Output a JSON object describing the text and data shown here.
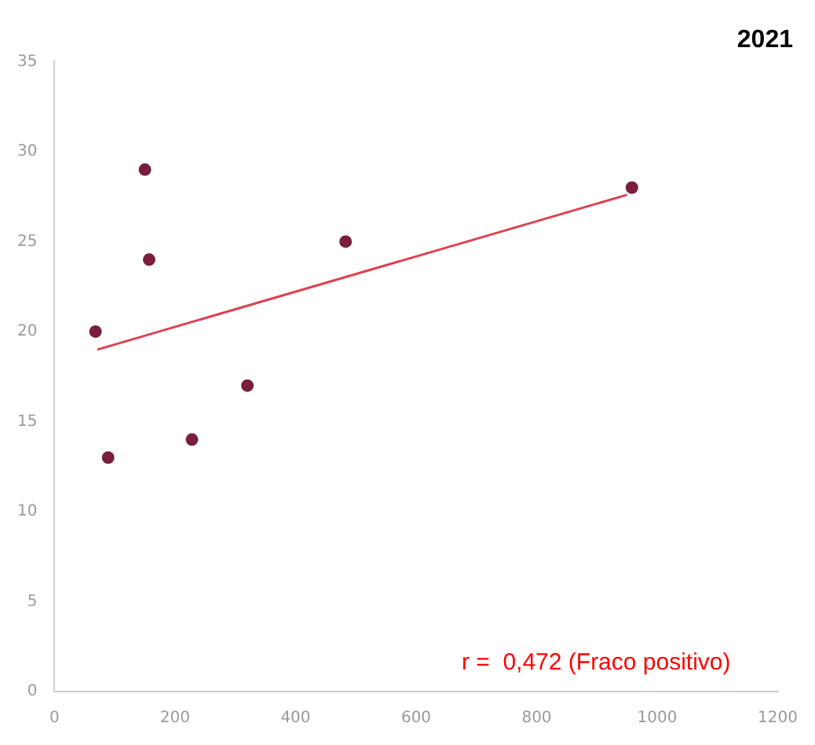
{
  "chart_data": {
    "type": "scatter",
    "title": "2021",
    "annotations": [
      "r =  0,472 (Fraco positivo)"
    ],
    "xlim": [
      0,
      1200
    ],
    "xticks": [
      0,
      200,
      400,
      600,
      800,
      1000,
      1200
    ],
    "ylim": [
      0,
      35
    ],
    "yticks": [
      0,
      5,
      10,
      15,
      20,
      25,
      30,
      35
    ],
    "grid": false,
    "legend": false,
    "marker": "circle",
    "series": [
      {
        "type": "scatter",
        "color": "#7a1e3c",
        "x": [
          68,
          89,
          150,
          157,
          228,
          320,
          483,
          958
        ],
        "values": [
          20,
          13,
          29,
          24,
          14,
          17,
          25,
          28
        ]
      },
      {
        "type": "line",
        "color": "#e04050",
        "x": [
          71,
          950
        ],
        "values": [
          19,
          27.6
        ],
        "marker": "none"
      }
    ]
  }
}
